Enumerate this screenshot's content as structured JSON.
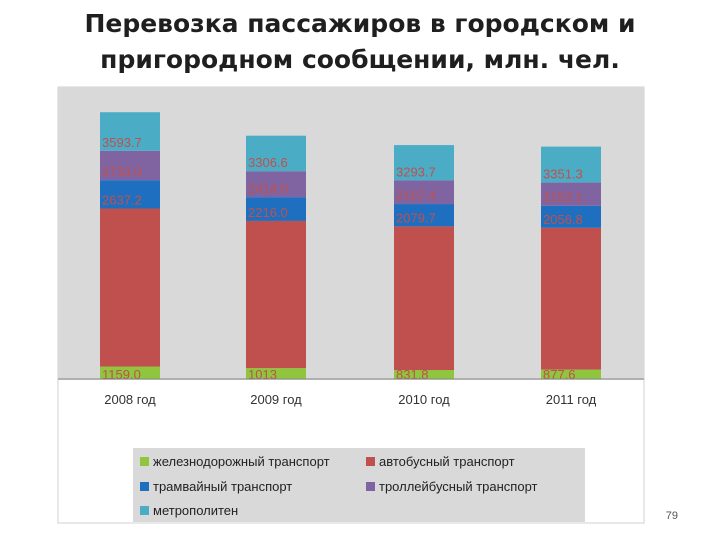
{
  "slide": {
    "title_line1": "Перевозка пассажиров в городском и",
    "title_line2": "пригородном сообщении, млн. чел.",
    "page_number": "79"
  },
  "chart_data": {
    "type": "bar",
    "stacked": true,
    "categories": [
      "2008 год",
      "2009  год",
      "2010  год",
      "2011  год"
    ],
    "series": [
      {
        "name": "железнодорожный транспорт",
        "color": "#8fc63d",
        "values": [
          1159.0,
          1013,
          831.8,
          877.6
        ],
        "labels": [
          "1159.0",
          "1013",
          "831.8",
          "877.6"
        ]
      },
      {
        "name": "автобусный транспорт",
        "color": "#c0504d",
        "values": [
          14717.8,
          13704.4,
          13377.8,
          13201.5
        ],
        "labels": [
          "14717.8",
          "13704.4",
          "13377.8",
          "13201.5"
        ]
      },
      {
        "name": "трамвайный транспорт",
        "color": "#1f6fc0",
        "values": [
          2637.2,
          2216.0,
          2079.7,
          2056.8
        ],
        "labels": [
          "2637.2",
          "2216.0",
          "2079.7",
          "2056.8"
        ]
      },
      {
        "name": "троллейбусный транспорт",
        "color": "#8064a2",
        "values": [
          2733.0,
          2414.0,
          2197.4,
          2152.1
        ],
        "labels": [
          "2733.0",
          "2414.0",
          "2197.4",
          "2152.1"
        ]
      },
      {
        "name": "метрополитен",
        "color": "#4bacc6",
        "values": [
          3593.7,
          3306.6,
          3293.7,
          3351.3
        ],
        "labels": [
          "3593.7",
          "3306.6",
          "3293.7",
          "3351.3"
        ]
      }
    ],
    "legend_position": "bottom",
    "plot_background": "#d9d9d9",
    "label_color": "#c0504d",
    "grid": false
  }
}
